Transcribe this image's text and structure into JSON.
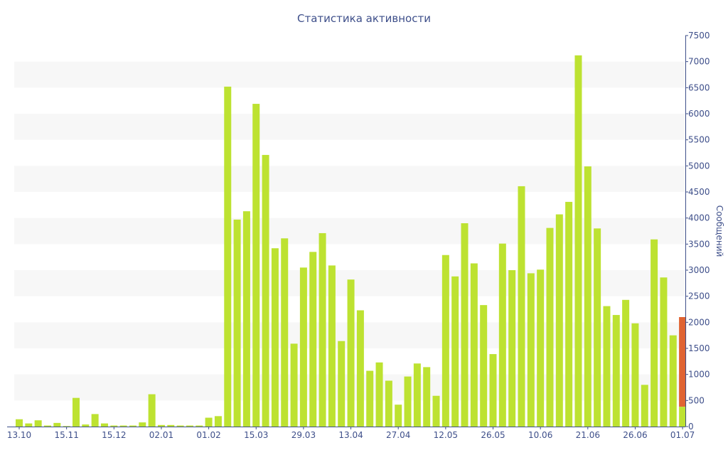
{
  "chart_data": {
    "type": "bar",
    "title": "Статистика активности",
    "xlabel": "",
    "ylabel": "Сообщений",
    "ylim": [
      0,
      7500
    ],
    "y_ticks": [
      0,
      500,
      1000,
      1500,
      2000,
      2500,
      3000,
      3500,
      4000,
      4500,
      5000,
      5500,
      6000,
      6500,
      7000,
      7500
    ],
    "x_tick_labels": [
      {
        "label": "13.10",
        "index": 0
      },
      {
        "label": "15.11",
        "index": 5
      },
      {
        "label": "15.12",
        "index": 10
      },
      {
        "label": "02.01",
        "index": 15
      },
      {
        "label": "01.02",
        "index": 20
      },
      {
        "label": "15.03",
        "index": 25
      },
      {
        "label": "29.03",
        "index": 30
      },
      {
        "label": "13.04",
        "index": 35
      },
      {
        "label": "27.04",
        "index": 40
      },
      {
        "label": "12.05",
        "index": 45
      },
      {
        "label": "26.05",
        "index": 50
      },
      {
        "label": "10.06",
        "index": 55
      },
      {
        "label": "21.06",
        "index": 60
      },
      {
        "label": "26.06",
        "index": 65
      },
      {
        "label": "01.07",
        "index": 70
      }
    ],
    "values": [
      140,
      60,
      120,
      20,
      70,
      10,
      550,
      40,
      240,
      60,
      20,
      20,
      20,
      80,
      620,
      30,
      30,
      20,
      20,
      20,
      170,
      200,
      6520,
      3970,
      4130,
      6190,
      5210,
      3420,
      3610,
      1590,
      3050,
      3350,
      3710,
      3090,
      1640,
      2820,
      2230,
      1070,
      1230,
      880,
      420,
      960,
      1210,
      1140,
      590,
      3290,
      2880,
      3900,
      3130,
      2330,
      1390,
      3510,
      3000,
      4610,
      2940,
      3010,
      3810,
      4070,
      4310,
      7120,
      4990,
      3800,
      2310,
      2140,
      2430,
      1980,
      800,
      3590,
      2860,
      1750,
      380
    ],
    "highlight_value": 2100,
    "grid": "horizontal bands",
    "colors": {
      "bar": "#bde231",
      "highlight": "#e06331",
      "axis_text": "#3e4f8a",
      "band": "#f7f7f7",
      "axis_line": "#3e4f8a"
    }
  }
}
